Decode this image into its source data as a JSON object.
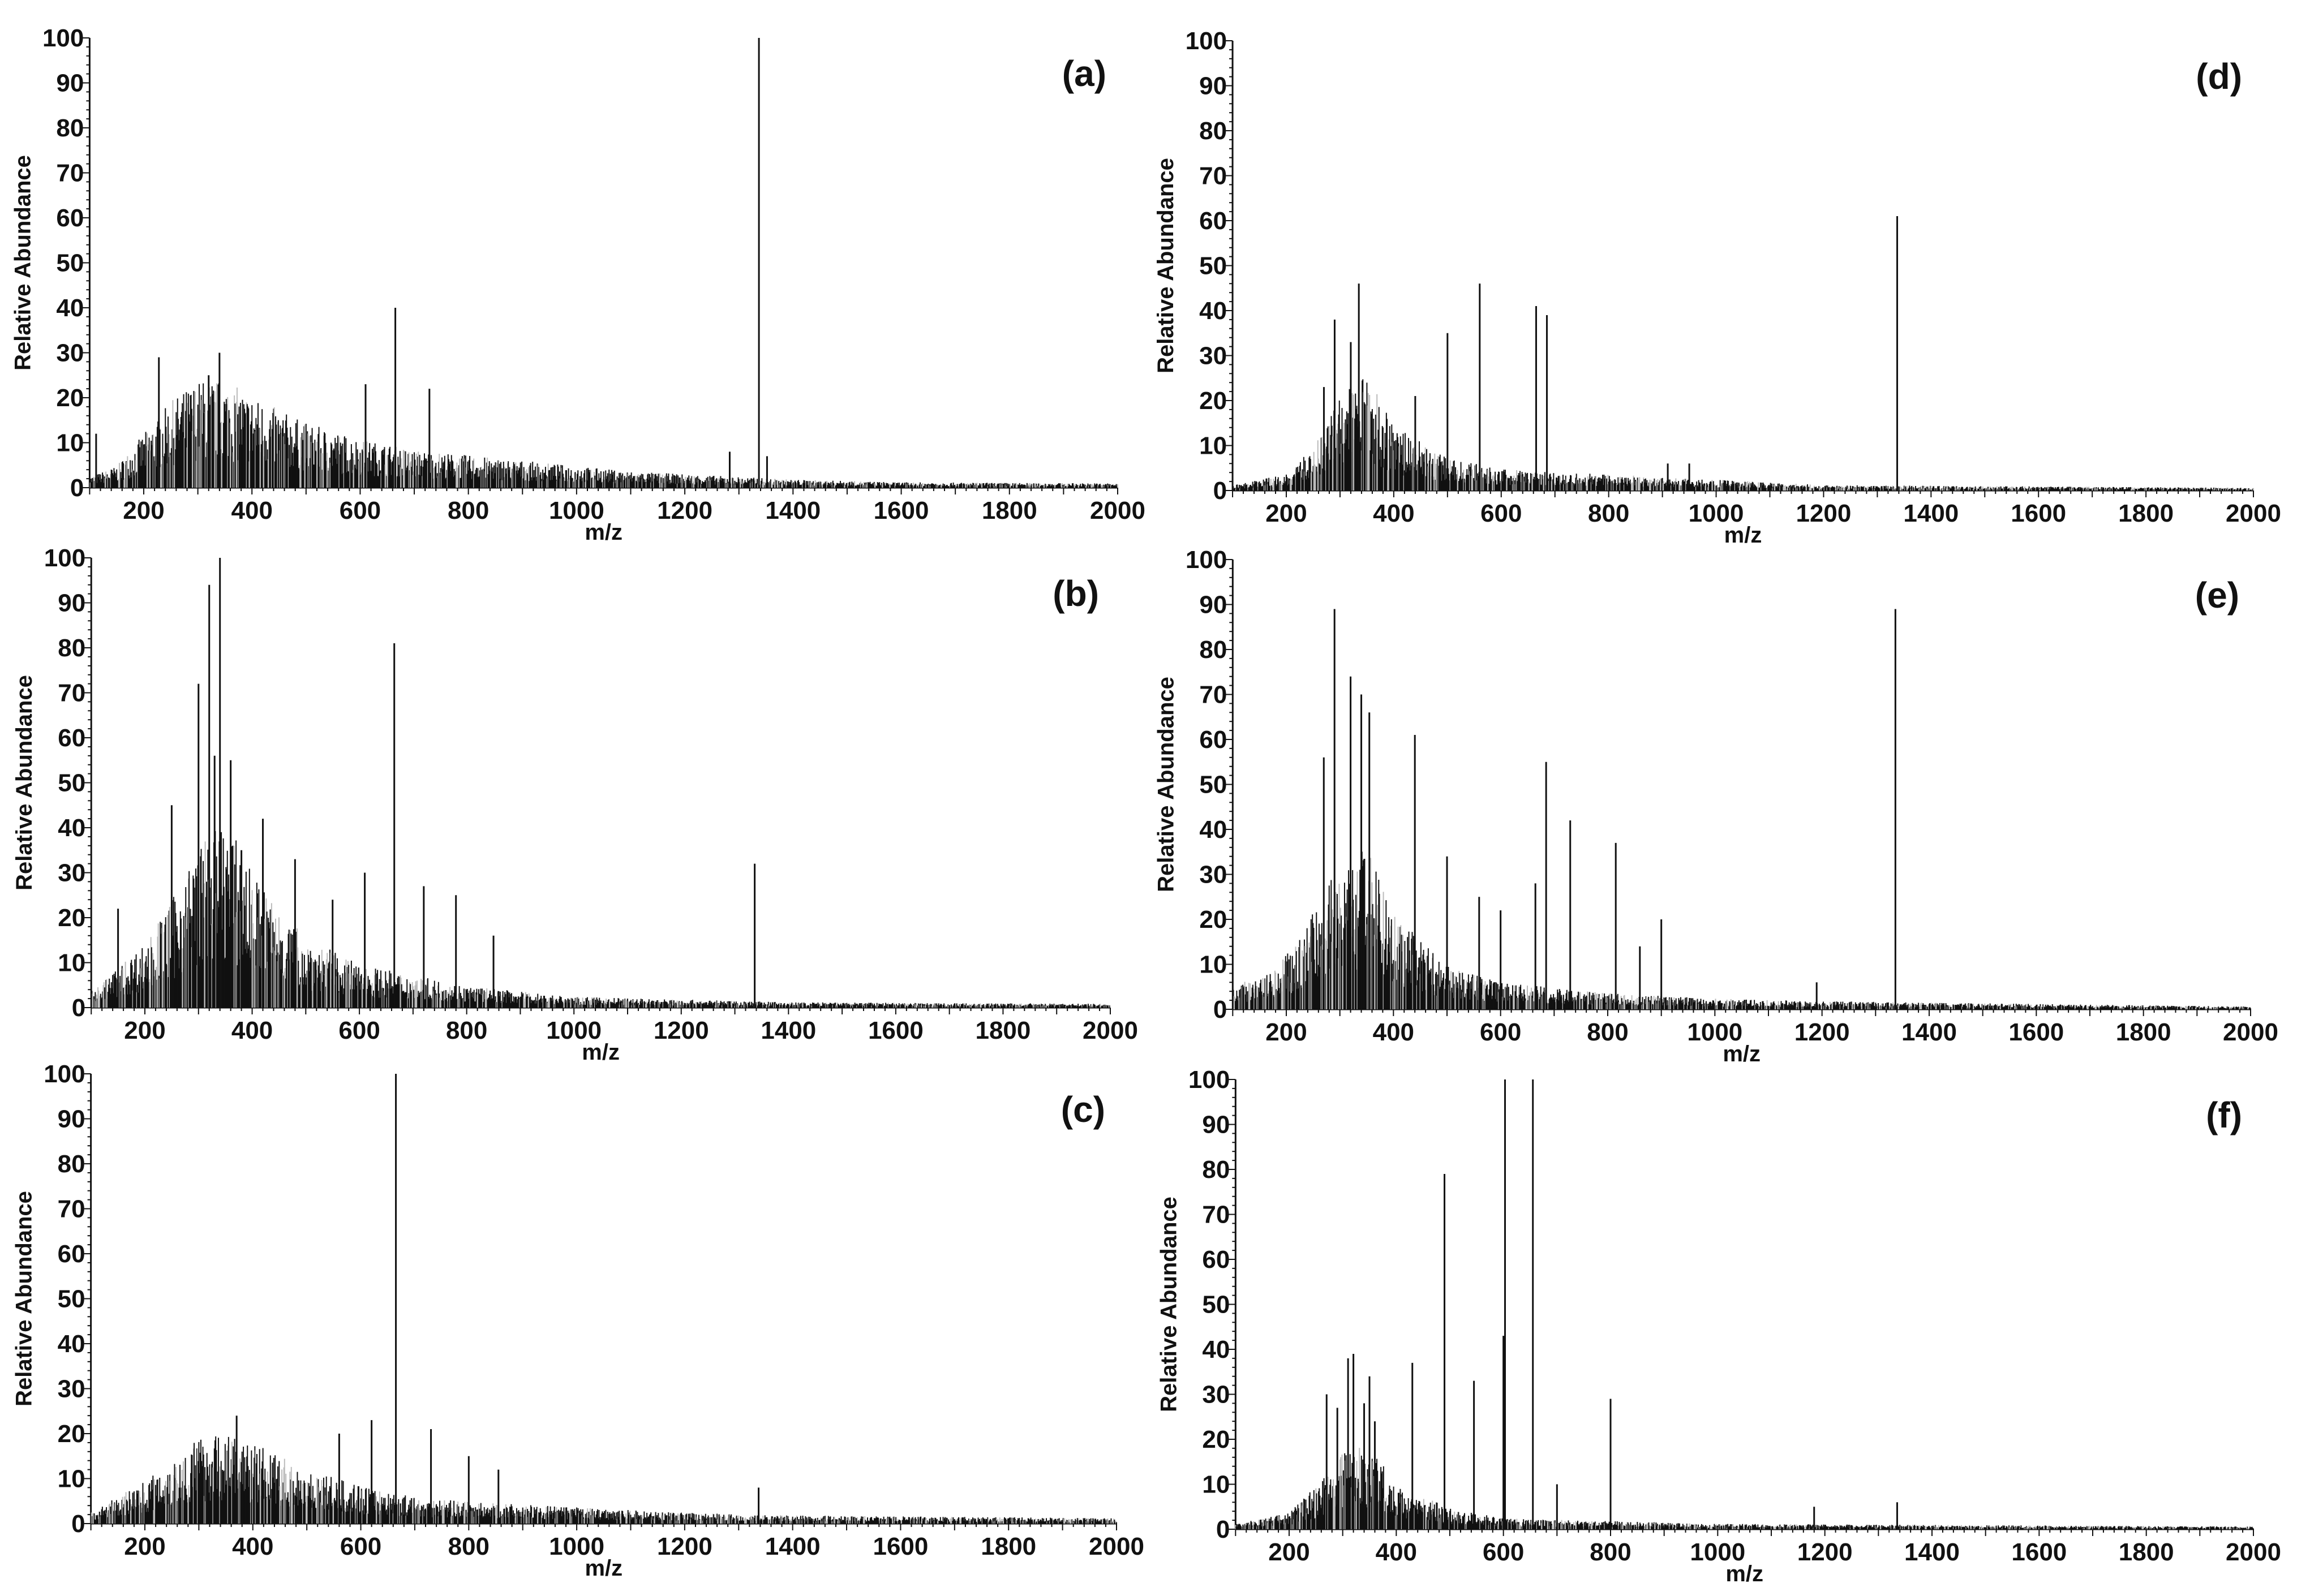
{
  "chart_data": [
    {
      "type": "bar",
      "panel_label": "(a)",
      "xlabel": "m/z",
      "ylabel": "Relative Abundance",
      "xlim": [
        100,
        2000
      ],
      "ylim": [
        0,
        100
      ],
      "xticks": [
        200,
        400,
        600,
        800,
        1000,
        1200,
        1400,
        1600,
        1800,
        2000
      ],
      "yticks": [
        0,
        10,
        20,
        30,
        40,
        50,
        60,
        70,
        80,
        90,
        100
      ],
      "grid": false,
      "peaks": [
        [
          112,
          12
        ],
        [
          228,
          29
        ],
        [
          320,
          25
        ],
        [
          340,
          30
        ],
        [
          610,
          23
        ],
        [
          665,
          40
        ],
        [
          728,
          22
        ],
        [
          1283,
          8
        ],
        [
          1337,
          100
        ],
        [
          1352,
          7
        ]
      ],
      "envelope": [
        [
          100,
          2
        ],
        [
          150,
          4
        ],
        [
          200,
          10
        ],
        [
          250,
          16
        ],
        [
          300,
          20
        ],
        [
          350,
          20
        ],
        [
          400,
          17
        ],
        [
          500,
          12
        ],
        [
          600,
          9
        ],
        [
          700,
          7
        ],
        [
          800,
          6
        ],
        [
          900,
          5
        ],
        [
          1000,
          4
        ],
        [
          1100,
          3
        ],
        [
          1200,
          2.5
        ],
        [
          1300,
          2
        ],
        [
          1400,
          1.5
        ],
        [
          1600,
          1
        ],
        [
          2000,
          0.8
        ]
      ]
    },
    {
      "type": "bar",
      "panel_label": "(b)",
      "xlabel": "m/z",
      "ylabel": "Relative Abundance",
      "xlim": [
        100,
        2000
      ],
      "ylim": [
        0,
        100
      ],
      "xticks": [
        200,
        400,
        600,
        800,
        1000,
        1200,
        1400,
        1600,
        1800,
        2000
      ],
      "yticks": [
        0,
        10,
        20,
        30,
        40,
        50,
        60,
        70,
        80,
        90,
        100
      ],
      "grid": false,
      "peaks": [
        [
          150,
          22
        ],
        [
          250,
          45
        ],
        [
          300,
          72
        ],
        [
          320,
          94
        ],
        [
          330,
          56
        ],
        [
          340,
          100
        ],
        [
          360,
          55
        ],
        [
          380,
          35
        ],
        [
          420,
          42
        ],
        [
          480,
          33
        ],
        [
          550,
          24
        ],
        [
          610,
          30
        ],
        [
          665,
          81
        ],
        [
          720,
          27
        ],
        [
          780,
          25
        ],
        [
          850,
          16
        ],
        [
          1337,
          32
        ]
      ],
      "envelope": [
        [
          100,
          3
        ],
        [
          200,
          12
        ],
        [
          250,
          20
        ],
        [
          300,
          30
        ],
        [
          350,
          35
        ],
        [
          400,
          25
        ],
        [
          500,
          13
        ],
        [
          600,
          8
        ],
        [
          700,
          6
        ],
        [
          800,
          4
        ],
        [
          900,
          3
        ],
        [
          1000,
          2
        ],
        [
          1200,
          1.5
        ],
        [
          1400,
          1
        ],
        [
          2000,
          0.7
        ]
      ]
    },
    {
      "type": "bar",
      "panel_label": "(c)",
      "xlabel": "m/z",
      "ylabel": "Relative Abundance",
      "xlim": [
        100,
        2000
      ],
      "ylim": [
        0,
        100
      ],
      "xticks": [
        200,
        400,
        600,
        800,
        1000,
        1200,
        1400,
        1600,
        1800,
        2000
      ],
      "yticks": [
        0,
        10,
        20,
        30,
        40,
        50,
        60,
        70,
        80,
        90,
        100
      ],
      "grid": false,
      "peaks": [
        [
          370,
          24
        ],
        [
          560,
          20
        ],
        [
          620,
          23
        ],
        [
          665,
          100
        ],
        [
          730,
          21
        ],
        [
          800,
          15
        ],
        [
          855,
          12
        ],
        [
          1337,
          8
        ]
      ],
      "envelope": [
        [
          100,
          2
        ],
        [
          200,
          8
        ],
        [
          300,
          16
        ],
        [
          350,
          17
        ],
        [
          400,
          15
        ],
        [
          500,
          10
        ],
        [
          600,
          7
        ],
        [
          700,
          5
        ],
        [
          800,
          4
        ],
        [
          1000,
          3
        ],
        [
          1200,
          2
        ],
        [
          1400,
          1.5
        ],
        [
          2000,
          1
        ]
      ]
    },
    {
      "type": "bar",
      "panel_label": "(d)",
      "xlabel": "m/z",
      "ylabel": "Relative Abundance",
      "xlim": [
        100,
        2000
      ],
      "ylim": [
        0,
        100
      ],
      "xticks": [
        200,
        400,
        600,
        800,
        1000,
        1200,
        1400,
        1600,
        1800,
        2000
      ],
      "yticks": [
        0,
        10,
        20,
        30,
        40,
        50,
        60,
        70,
        80,
        90,
        100
      ],
      "grid": false,
      "peaks": [
        [
          270,
          23
        ],
        [
          290,
          38
        ],
        [
          320,
          33
        ],
        [
          335,
          46
        ],
        [
          440,
          21
        ],
        [
          500,
          35
        ],
        [
          560,
          46
        ],
        [
          665,
          41
        ],
        [
          685,
          39
        ],
        [
          910,
          6
        ],
        [
          950,
          6
        ],
        [
          1337,
          61
        ]
      ],
      "envelope": [
        [
          100,
          1
        ],
        [
          200,
          3
        ],
        [
          250,
          8
        ],
        [
          300,
          18
        ],
        [
          350,
          22
        ],
        [
          400,
          12
        ],
        [
          500,
          6
        ],
        [
          600,
          4
        ],
        [
          800,
          3
        ],
        [
          1000,
          2
        ],
        [
          1200,
          1
        ],
        [
          2000,
          0.5
        ]
      ]
    },
    {
      "type": "bar",
      "panel_label": "(e)",
      "xlabel": "m/z",
      "ylabel": "Relative Abundance",
      "xlim": [
        100,
        2000
      ],
      "ylim": [
        0,
        100
      ],
      "xticks": [
        200,
        400,
        600,
        800,
        1000,
        1200,
        1400,
        1600,
        1800,
        2000
      ],
      "yticks": [
        0,
        10,
        20,
        30,
        40,
        50,
        60,
        70,
        80,
        90,
        100
      ],
      "grid": false,
      "peaks": [
        [
          270,
          56
        ],
        [
          290,
          89
        ],
        [
          320,
          74
        ],
        [
          340,
          70
        ],
        [
          355,
          66
        ],
        [
          440,
          61
        ],
        [
          500,
          34
        ],
        [
          560,
          25
        ],
        [
          600,
          22
        ],
        [
          665,
          28
        ],
        [
          685,
          55
        ],
        [
          730,
          42
        ],
        [
          815,
          37
        ],
        [
          860,
          14
        ],
        [
          900,
          20
        ],
        [
          1190,
          6
        ],
        [
          1337,
          89
        ]
      ],
      "envelope": [
        [
          100,
          4
        ],
        [
          200,
          10
        ],
        [
          250,
          18
        ],
        [
          300,
          28
        ],
        [
          350,
          30
        ],
        [
          400,
          18
        ],
        [
          500,
          8
        ],
        [
          600,
          5
        ],
        [
          800,
          3
        ],
        [
          1000,
          2
        ],
        [
          1200,
          1.5
        ],
        [
          2000,
          0.5
        ]
      ]
    },
    {
      "type": "bar",
      "panel_label": "(f)",
      "xlabel": "m/z",
      "ylabel": "Relative Abundance",
      "xlim": [
        100,
        2000
      ],
      "ylim": [
        0,
        100
      ],
      "xticks": [
        200,
        400,
        600,
        800,
        1000,
        1200,
        1400,
        1600,
        1800,
        2000
      ],
      "yticks": [
        0,
        10,
        20,
        30,
        40,
        50,
        60,
        70,
        80,
        90,
        100
      ],
      "grid": false,
      "peaks": [
        [
          270,
          30
        ],
        [
          290,
          27
        ],
        [
          310,
          38
        ],
        [
          320,
          39
        ],
        [
          340,
          28
        ],
        [
          350,
          34
        ],
        [
          360,
          24
        ],
        [
          430,
          37
        ],
        [
          490,
          79
        ],
        [
          545,
          33
        ],
        [
          600,
          43
        ],
        [
          603,
          100
        ],
        [
          655,
          100
        ],
        [
          700,
          10
        ],
        [
          800,
          29
        ],
        [
          1180,
          5
        ],
        [
          1335,
          6
        ]
      ],
      "envelope": [
        [
          100,
          1
        ],
        [
          200,
          3
        ],
        [
          250,
          8
        ],
        [
          300,
          14
        ],
        [
          350,
          16
        ],
        [
          400,
          8
        ],
        [
          500,
          4
        ],
        [
          600,
          2
        ],
        [
          800,
          1.5
        ],
        [
          1000,
          1
        ],
        [
          2000,
          0.5
        ]
      ]
    }
  ],
  "colors": {
    "ink": "#111111",
    "light_peak": "#bbbbbb"
  }
}
